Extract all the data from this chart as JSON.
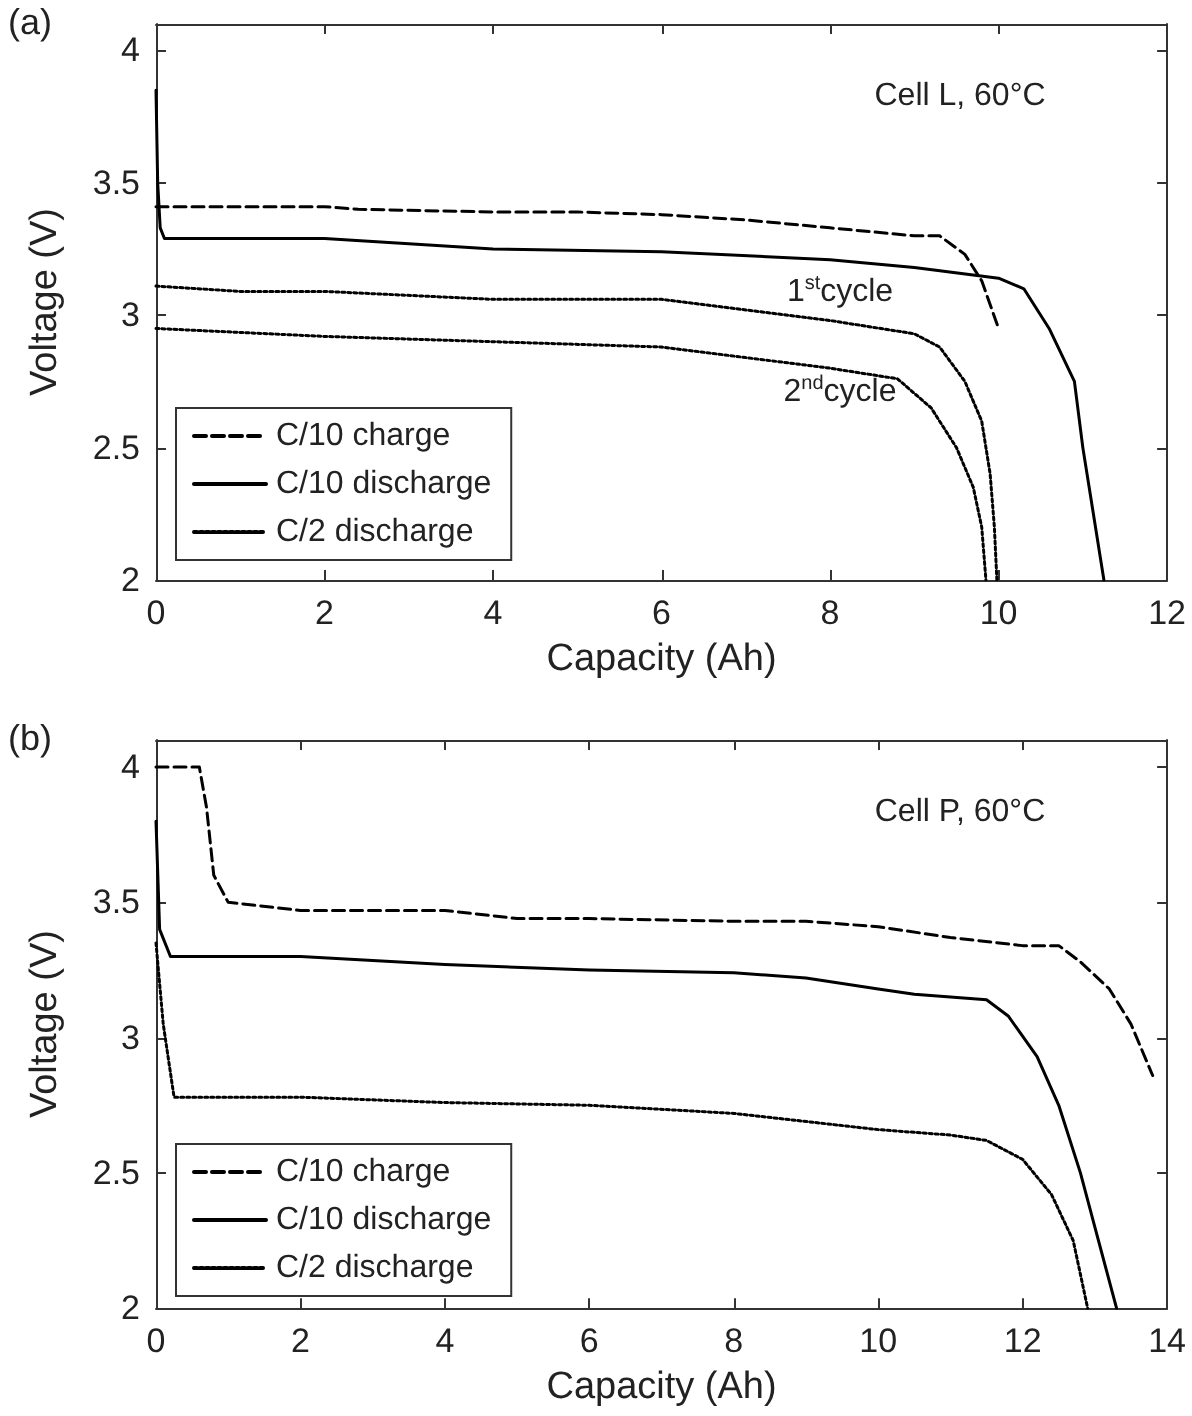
{
  "chart_data": [
    {
      "type": "line",
      "title": "(a)",
      "xlabel": "Capacity (Ah)",
      "ylabel": "Voltage (V)",
      "xlim": [
        0,
        12
      ],
      "xticks": [
        0,
        2,
        4,
        6,
        8,
        10,
        12
      ],
      "ylim": [
        2,
        4.1
      ],
      "yticks": [
        2,
        2.5,
        3,
        3.5,
        4
      ],
      "grid": false,
      "legend": "bottom left",
      "marker": "none",
      "annotations": [
        "Cell L, 60°C",
        "1$^{st}$cycle",
        "2$^{nd}$cycle"
      ],
      "series": [
        {
          "name": "C/10 charge",
          "color": "#000000",
          "line_style": "dashed",
          "x": [
            0,
            2,
            2.4,
            4,
            5,
            6,
            7,
            8,
            9,
            9.3,
            9.6,
            9.8,
            10
          ],
          "values": [
            3.41,
            3.41,
            3.4,
            3.39,
            3.39,
            3.38,
            3.36,
            3.33,
            3.3,
            3.3,
            3.23,
            3.13,
            2.95
          ]
        },
        {
          "name": "C/10 discharge",
          "color": "#000000",
          "line_style": "solid",
          "x": [
            0,
            0.02,
            0.05,
            0.1,
            2,
            4,
            6,
            8,
            9,
            10,
            10.3,
            10.6,
            10.9,
            11.0,
            11.1,
            11.25
          ],
          "values": [
            3.85,
            3.5,
            3.33,
            3.29,
            3.29,
            3.25,
            3.24,
            3.21,
            3.18,
            3.14,
            3.1,
            2.95,
            2.75,
            2.5,
            2.3,
            2.0
          ]
        },
        {
          "name": "C/2 discharge",
          "color": "#000000",
          "line_style": "dotted",
          "x": [
            0,
            1,
            2,
            4,
            6,
            7,
            8,
            9,
            9.3,
            9.6,
            9.8,
            9.9,
            9.95,
            9.98
          ],
          "values": [
            3.11,
            3.09,
            3.09,
            3.06,
            3.06,
            3.02,
            2.98,
            2.93,
            2.88,
            2.75,
            2.6,
            2.4,
            2.2,
            2.0
          ]
        },
        {
          "color": "#000000",
          "line_style": "dotted",
          "x": [
            0,
            2,
            4,
            6,
            7,
            8,
            8.8,
            9.2,
            9.5,
            9.7,
            9.8,
            9.85
          ],
          "values": [
            2.95,
            2.92,
            2.9,
            2.88,
            2.84,
            2.8,
            2.76,
            2.65,
            2.5,
            2.35,
            2.2,
            2.0
          ]
        }
      ]
    },
    {
      "type": "line",
      "title": "(b)",
      "xlabel": "Capacity (Ah)",
      "ylabel": "Voltage (V)",
      "xlim": [
        0,
        14
      ],
      "xticks": [
        0,
        2,
        4,
        6,
        8,
        10,
        12,
        14
      ],
      "ylim": [
        2,
        4.1
      ],
      "yticks": [
        2,
        2.5,
        3,
        3.5,
        4
      ],
      "grid": false,
      "legend": "bottom left",
      "marker": "none",
      "annotations": [
        "Cell P, 60°C"
      ],
      "series": [
        {
          "name": "C/10 charge",
          "color": "#000000",
          "line_style": "dashed",
          "x": [
            0,
            0.6,
            0.7,
            0.8,
            1.0,
            2,
            4,
            5,
            6,
            8,
            9,
            10,
            11,
            12,
            12.5,
            12.8,
            13.2,
            13.5,
            13.8
          ],
          "values": [
            4.0,
            4.0,
            3.85,
            3.6,
            3.5,
            3.47,
            3.47,
            3.44,
            3.44,
            3.43,
            3.43,
            3.41,
            3.37,
            3.34,
            3.34,
            3.28,
            3.18,
            3.05,
            2.86
          ]
        },
        {
          "name": "C/10 discharge",
          "color": "#000000",
          "line_style": "solid",
          "x": [
            0,
            0.05,
            0.2,
            2,
            4,
            6,
            8,
            9,
            10,
            10.5,
            11.5,
            11.8,
            12.2,
            12.5,
            12.8,
            13.0,
            13.3
          ],
          "values": [
            3.8,
            3.4,
            3.3,
            3.3,
            3.27,
            3.25,
            3.24,
            3.22,
            3.18,
            3.16,
            3.14,
            3.08,
            2.93,
            2.75,
            2.5,
            2.3,
            2.0
          ]
        },
        {
          "name": "C/2 discharge",
          "color": "#000000",
          "line_style": "dotted",
          "x": [
            0,
            0.1,
            0.25,
            2,
            4,
            6,
            8,
            10,
            11,
            11.5,
            12,
            12.4,
            12.7,
            12.9
          ],
          "values": [
            3.35,
            3.05,
            2.78,
            2.78,
            2.76,
            2.75,
            2.72,
            2.66,
            2.64,
            2.62,
            2.55,
            2.42,
            2.25,
            2.0
          ]
        }
      ]
    }
  ]
}
